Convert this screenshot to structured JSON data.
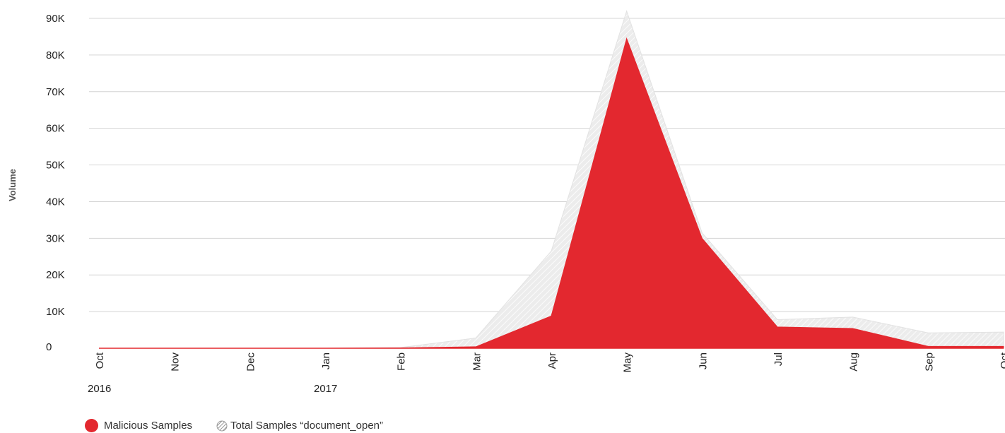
{
  "chart_data": {
    "type": "area",
    "ylabel": "Volume",
    "yticks": [
      "0",
      "10K",
      "20K",
      "30K",
      "40K",
      "50K",
      "60K",
      "70K",
      "80K",
      "90K"
    ],
    "ylim": [
      0,
      90000
    ],
    "categories": [
      "Oct",
      "Nov",
      "Dec",
      "Jan",
      "Feb",
      "Mar",
      "Apr",
      "May",
      "Jun",
      "Jul",
      "Aug",
      "Sep",
      "Oct"
    ],
    "year_labels": [
      {
        "index": 0,
        "label": "2016"
      },
      {
        "index": 3,
        "label": "2017"
      }
    ],
    "grid": true,
    "legend_placement": "bottom-left",
    "series": [
      {
        "name": "Total Samples “document_open”",
        "style": "hatched",
        "color": "#e6e6e6",
        "values": [
          0,
          0,
          0,
          0,
          200,
          2800,
          26500,
          92000,
          31500,
          7800,
          8500,
          4200,
          4400
        ]
      },
      {
        "name": "Malicious Samples",
        "style": "solid",
        "color": "#e3282f",
        "values": [
          0,
          0,
          0,
          0,
          100,
          400,
          8800,
          84500,
          30000,
          5800,
          5400,
          500,
          500
        ]
      }
    ]
  },
  "legend": {
    "malicious_label": "Malicious Samples",
    "total_label": "Total Samples “document_open”"
  }
}
